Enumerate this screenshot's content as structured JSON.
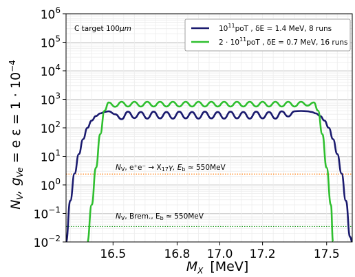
{
  "chart_data": {
    "type": "line",
    "title": "",
    "corner_label": {
      "text": "C target ",
      "unit": "100",
      "unit_italic": "μm"
    },
    "xlabel": {
      "main": "M",
      "sub": "X",
      "unit": "[MeV]"
    },
    "ylabel": {
      "text": "N",
      "sub": "V",
      "rest": ", g",
      "sub2": "Ve",
      "eq": " = e ε = 1 · 10",
      "exp": "−4"
    },
    "xlim": [
      16.28,
      17.62
    ],
    "ylim_log10": [
      -2,
      6
    ],
    "x_ticks": [
      16.5,
      16.8,
      17.0,
      17.2,
      17.5
    ],
    "x_tick_labels": [
      "16.5",
      "16.8",
      "17.0",
      "17.2",
      "17.5"
    ],
    "y_ticks": [
      {
        "base": "10",
        "exp": "6",
        "log": 6
      },
      {
        "base": "10",
        "exp": "5",
        "log": 5
      },
      {
        "base": "10",
        "exp": "4",
        "log": 4
      },
      {
        "base": "10",
        "exp": "3",
        "log": 3
      },
      {
        "base": "10",
        "exp": "2",
        "log": 2
      },
      {
        "base": "10",
        "exp": "1",
        "log": 1
      },
      {
        "base": "10",
        "exp": "0",
        "log": 0
      },
      {
        "base": "10",
        "exp": "−1",
        "log": -1
      },
      {
        "base": "10",
        "exp": "−2",
        "log": -2
      }
    ],
    "grid": true,
    "legend_position": "top-right",
    "series": [
      {
        "name": "10¹¹poT , δE = 1.4 MeV, 8 runs",
        "color": "#1a1a6e",
        "x": [
          16.28,
          16.3,
          16.32,
          16.34,
          16.36,
          16.38,
          16.4,
          16.42,
          16.44,
          16.46,
          16.48,
          16.51,
          16.54,
          16.57,
          16.6,
          16.63,
          16.66,
          16.69,
          16.72,
          16.75,
          16.78,
          16.81,
          16.84,
          16.87,
          16.9,
          16.93,
          16.96,
          16.99,
          17.02,
          17.05,
          17.08,
          17.11,
          17.14,
          17.17,
          17.2,
          17.23,
          17.26,
          17.29,
          17.32,
          17.35,
          17.38,
          17.41,
          17.43,
          17.45,
          17.47,
          17.49,
          17.51,
          17.53,
          17.55,
          17.57,
          17.59,
          17.61,
          17.62
        ],
        "y": [
          0.01,
          0.28,
          2.5,
          12,
          40,
          100,
          180,
          260,
          320,
          360,
          380,
          300,
          200,
          370,
          220,
          360,
          210,
          370,
          215,
          360,
          210,
          370,
          215,
          360,
          210,
          370,
          215,
          360,
          210,
          370,
          215,
          360,
          210,
          370,
          215,
          360,
          210,
          380,
          250,
          380,
          390,
          380,
          360,
          320,
          260,
          180,
          100,
          40,
          12,
          2.5,
          0.28,
          0.015,
          0.01
        ]
      },
      {
        "name": "2 · 10¹¹poT , δE = 0.7 MeV, 16 runs",
        "color": "#2fbf2f",
        "x": [
          16.38,
          16.4,
          16.42,
          16.44,
          16.46,
          16.48,
          16.51,
          16.54,
          16.57,
          16.6,
          16.63,
          16.66,
          16.69,
          16.72,
          16.75,
          16.78,
          16.81,
          16.84,
          16.87,
          16.9,
          16.93,
          16.96,
          16.99,
          17.02,
          17.05,
          17.08,
          17.11,
          17.14,
          17.17,
          17.2,
          17.23,
          17.26,
          17.29,
          17.32,
          17.35,
          17.38,
          17.41,
          17.44,
          17.46,
          17.48,
          17.5,
          17.52,
          17.53
        ],
        "y": [
          0.01,
          0.2,
          4,
          60,
          400,
          780,
          550,
          820,
          560,
          820,
          560,
          820,
          560,
          820,
          560,
          820,
          560,
          820,
          560,
          820,
          560,
          820,
          560,
          820,
          560,
          820,
          560,
          820,
          560,
          820,
          560,
          820,
          560,
          820,
          560,
          820,
          600,
          780,
          400,
          60,
          4,
          0.2,
          0.01
        ]
      }
    ],
    "reference_lines": [
      {
        "y": 2.4,
        "color": "#ff7f0e",
        "label": {
          "n": "N",
          "nsub": "V",
          "rest": ", e⁺e⁻ → X",
          "xsub": "17",
          "gamma": "γ, E",
          "esub": "b",
          "tail": " ≃ 550MeV"
        }
      },
      {
        "y": 0.035,
        "color": "#2ca02c",
        "label": {
          "n": "N",
          "nsub": "V",
          "rest": ", Brem., E",
          "esub": "b",
          "tail": " ≃ 550MeV"
        }
      }
    ],
    "legend": [
      {
        "base": "10",
        "exp": "11",
        "text": "poT , δE = 1.4 MeV, 8 runs"
      },
      {
        "base": "2 · 10",
        "exp": "11",
        "text": "poT , δE = 0.7 MeV, 16 runs"
      }
    ]
  }
}
